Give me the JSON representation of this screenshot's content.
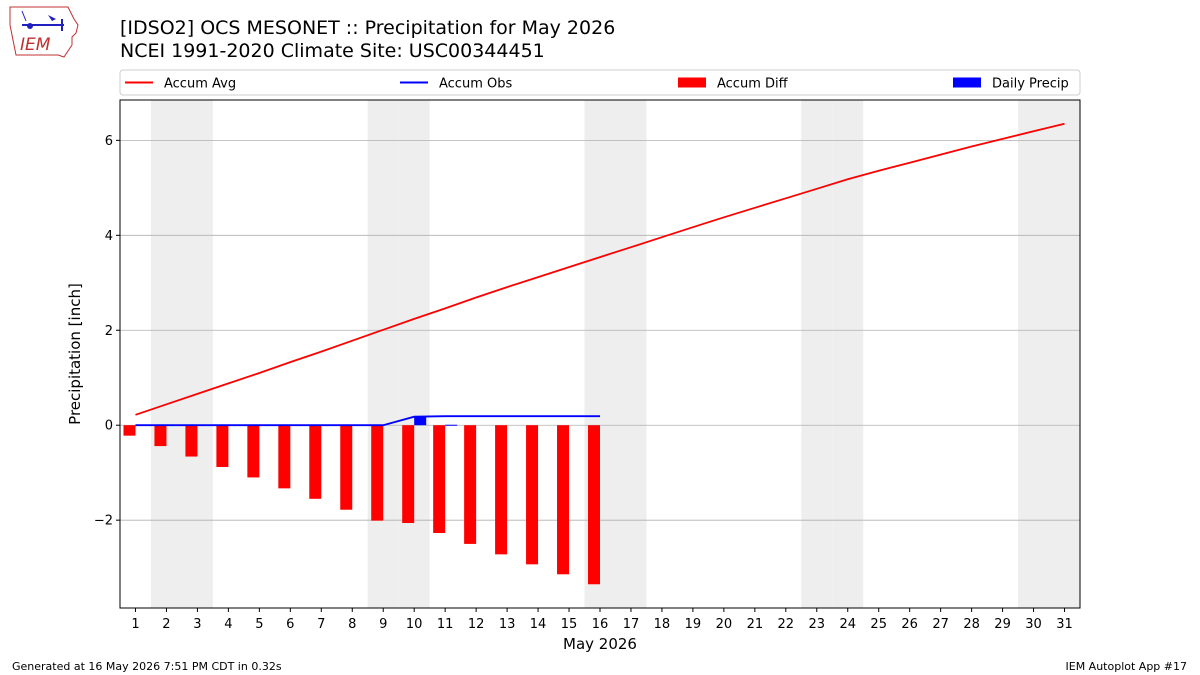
{
  "header": {
    "title": "[IDSO2] OCS MESONET :: Precipitation for May 2026",
    "subtitle": "NCEI 1991-2020 Climate Site: USC00344451",
    "logo_text": "IEM"
  },
  "footer": {
    "left": "Generated at 16 May 2026 7:51 PM CDT in 0.32s",
    "right": "IEM Autoplot App #17"
  },
  "colors": {
    "accum_avg": "#ff0000",
    "accum_obs": "#0000ff",
    "accum_diff": "#ff0000",
    "daily_precip": "#0000ff",
    "weekend_shade": "#eeeeee",
    "grid": "#b0b0b0"
  },
  "chart_data": {
    "type": "bar",
    "xlabel": "May 2026",
    "ylabel": "Precipitation [inch]",
    "xlim": [
      0.5,
      31.5
    ],
    "ylim": [
      -3.85,
      6.85
    ],
    "yticks": [
      -2,
      0,
      2,
      4,
      6
    ],
    "ytick_labels": [
      "−2",
      "0",
      "2",
      "4",
      "6"
    ],
    "x": [
      1,
      2,
      3,
      4,
      5,
      6,
      7,
      8,
      9,
      10,
      11,
      12,
      13,
      14,
      15,
      16,
      17,
      18,
      19,
      20,
      21,
      22,
      23,
      24,
      25,
      26,
      27,
      28,
      29,
      30,
      31
    ],
    "grid": "y",
    "weekend_days": [
      2,
      3,
      9,
      10,
      16,
      17,
      23,
      24,
      30,
      31
    ],
    "legend": {
      "placement": "top",
      "entries": [
        {
          "name": "Accum Avg",
          "kind": "line",
          "series": "accum_avg"
        },
        {
          "name": "Accum Obs",
          "kind": "line",
          "series": "accum_obs"
        },
        {
          "name": "Accum Diff",
          "kind": "bar",
          "series": "accum_diff"
        },
        {
          "name": "Daily Precip",
          "kind": "bar",
          "series": "daily_precip"
        }
      ]
    },
    "series": [
      {
        "name": "Accum Avg",
        "type": "line",
        "x": [
          1,
          2,
          3,
          4,
          5,
          6,
          7,
          8,
          9,
          10,
          11,
          12,
          13,
          14,
          15,
          16,
          17,
          18,
          19,
          20,
          21,
          22,
          23,
          24,
          25,
          26,
          27,
          28,
          29,
          30,
          31
        ],
        "values": [
          0.22,
          0.44,
          0.66,
          0.88,
          1.1,
          1.33,
          1.55,
          1.78,
          2.01,
          2.24,
          2.46,
          2.69,
          2.91,
          3.12,
          3.33,
          3.54,
          3.75,
          3.96,
          4.17,
          4.38,
          4.58,
          4.78,
          4.98,
          5.18,
          5.36,
          5.53,
          5.7,
          5.87,
          6.03,
          6.19,
          6.35
        ]
      },
      {
        "name": "Accum Obs",
        "type": "line",
        "x": [
          1,
          2,
          3,
          4,
          5,
          6,
          7,
          8,
          9,
          10,
          11,
          12,
          13,
          14,
          15,
          16
        ],
        "values": [
          0,
          0,
          0,
          0,
          0,
          0,
          0,
          0,
          0,
          0.18,
          0.19,
          0.19,
          0.19,
          0.19,
          0.19,
          0.19
        ]
      },
      {
        "name": "Accum Diff",
        "type": "bar",
        "x": [
          1,
          2,
          3,
          4,
          5,
          6,
          7,
          8,
          9,
          10,
          11,
          12,
          13,
          14,
          15,
          16
        ],
        "values": [
          -0.22,
          -0.44,
          -0.66,
          -0.88,
          -1.1,
          -1.33,
          -1.55,
          -1.78,
          -2.01,
          -2.06,
          -2.27,
          -2.5,
          -2.72,
          -2.93,
          -3.14,
          -3.35
        ]
      },
      {
        "name": "Daily Precip",
        "type": "bar",
        "x": [
          1,
          2,
          3,
          4,
          5,
          6,
          7,
          8,
          9,
          10,
          11,
          12,
          13,
          14,
          15,
          16
        ],
        "values": [
          0,
          0,
          0,
          0,
          0,
          0,
          0,
          0,
          0,
          0.18,
          0.01,
          0,
          0,
          0,
          0,
          0
        ]
      }
    ]
  }
}
